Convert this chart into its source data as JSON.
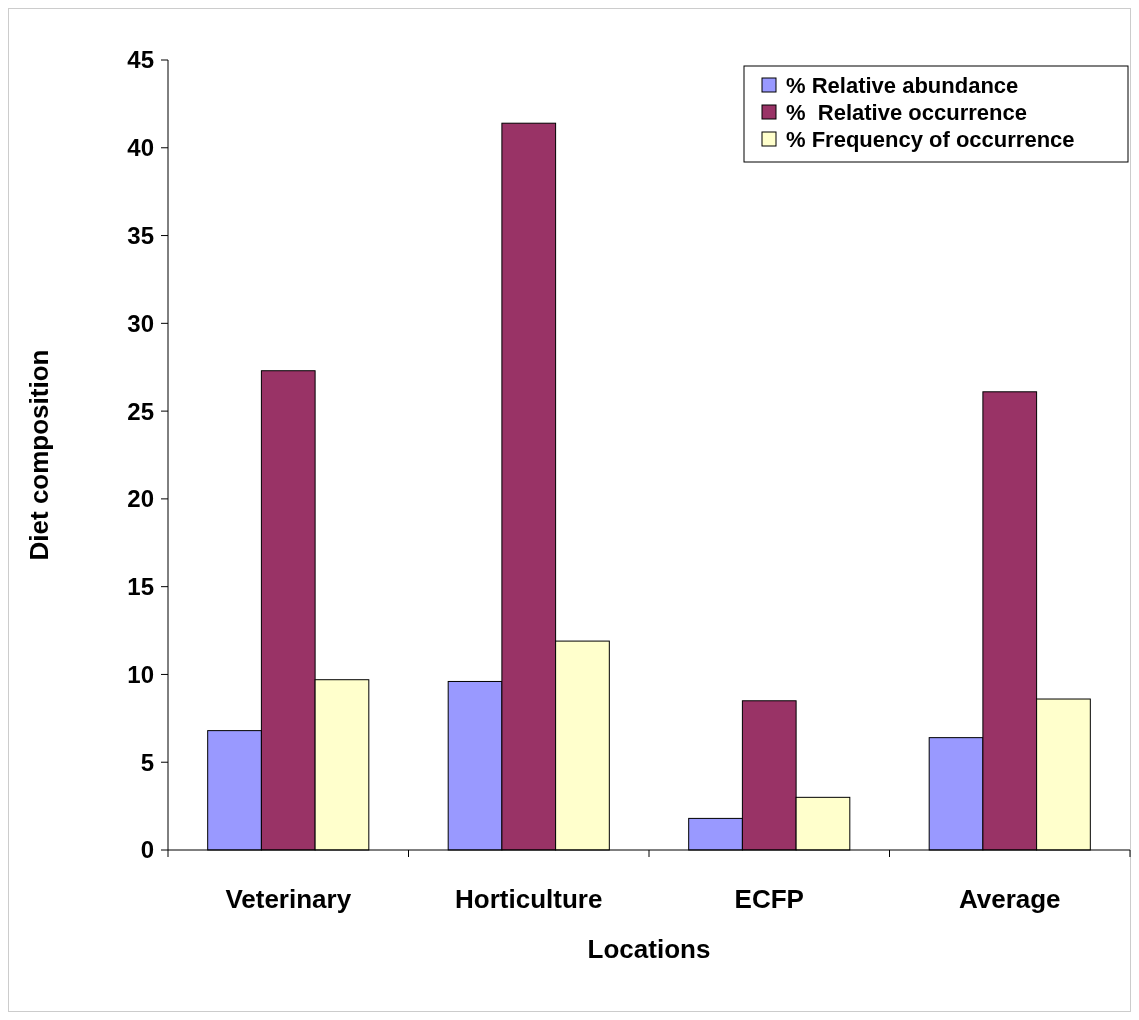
{
  "chart_data": {
    "type": "bar",
    "xlabel": "Locations",
    "ylabel": "Diet composition",
    "categories": [
      "Veterinary",
      "Horticulture",
      "ECFP",
      "Average"
    ],
    "series": [
      {
        "name": "% Relative abundance",
        "color": "#9999ff",
        "values": [
          6.8,
          9.6,
          1.8,
          6.4
        ]
      },
      {
        "name": "%  Relative occurrence",
        "color": "#993366",
        "values": [
          27.3,
          41.4,
          8.5,
          26.1
        ]
      },
      {
        "name": "% Frequency of occurrence",
        "color": "#ffffcc",
        "values": [
          9.7,
          11.9,
          3.0,
          8.6
        ]
      }
    ],
    "ylim": [
      0,
      45
    ],
    "yticks": [
      0,
      5,
      10,
      15,
      20,
      25,
      30,
      35,
      40,
      45
    ],
    "grid": false,
    "legend": "top right"
  }
}
